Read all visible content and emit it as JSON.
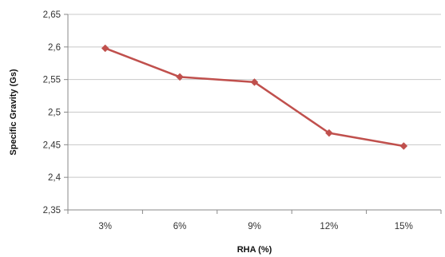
{
  "chart_data": {
    "type": "line",
    "title": "",
    "xlabel": "RHA (%)",
    "ylabel": "Specific Gravity (Gs)",
    "categories": [
      "3%",
      "6%",
      "9%",
      "12%",
      "15%"
    ],
    "series": [
      {
        "values": [
          2.598,
          2.554,
          2.546,
          2.468,
          2.448
        ],
        "color": "#c0504d"
      }
    ],
    "ylim": [
      2.35,
      2.65
    ],
    "yticks": [
      "2,35",
      "2,4",
      "2,45",
      "2,5",
      "2,55",
      "2,6",
      "2,65"
    ],
    "grid": true,
    "legend": "none"
  }
}
